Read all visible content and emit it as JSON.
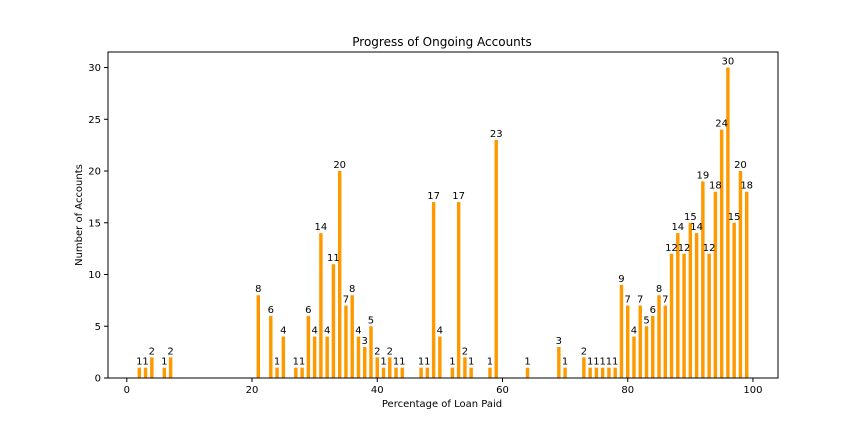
{
  "chart_data": {
    "type": "bar",
    "title": "Progress of Ongoing Accounts",
    "xlabel": "Percentage of Loan Paid",
    "ylabel": "Number of Accounts",
    "xlim": [
      -3,
      104
    ],
    "ylim": [
      0,
      31.5
    ],
    "xticks": [
      0,
      20,
      40,
      60,
      80,
      100
    ],
    "yticks": [
      0,
      5,
      10,
      15,
      20,
      25,
      30
    ],
    "grid": false,
    "bar_color": "#ff9900",
    "bars": [
      {
        "x": 2,
        "y": 1
      },
      {
        "x": 3,
        "y": 1
      },
      {
        "x": 4,
        "y": 2
      },
      {
        "x": 6,
        "y": 1
      },
      {
        "x": 7,
        "y": 2
      },
      {
        "x": 21,
        "y": 8
      },
      {
        "x": 23,
        "y": 6
      },
      {
        "x": 24,
        "y": 1
      },
      {
        "x": 25,
        "y": 4
      },
      {
        "x": 27,
        "y": 1
      },
      {
        "x": 28,
        "y": 1
      },
      {
        "x": 29,
        "y": 6
      },
      {
        "x": 30,
        "y": 4
      },
      {
        "x": 31,
        "y": 14
      },
      {
        "x": 32,
        "y": 4
      },
      {
        "x": 33,
        "y": 11
      },
      {
        "x": 34,
        "y": 20
      },
      {
        "x": 35,
        "y": 7
      },
      {
        "x": 36,
        "y": 8
      },
      {
        "x": 37,
        "y": 4
      },
      {
        "x": 38,
        "y": 3
      },
      {
        "x": 39,
        "y": 5
      },
      {
        "x": 40,
        "y": 2
      },
      {
        "x": 41,
        "y": 1
      },
      {
        "x": 42,
        "y": 2
      },
      {
        "x": 43,
        "y": 1
      },
      {
        "x": 44,
        "y": 1
      },
      {
        "x": 47,
        "y": 1
      },
      {
        "x": 48,
        "y": 1
      },
      {
        "x": 49,
        "y": 17
      },
      {
        "x": 50,
        "y": 4
      },
      {
        "x": 52,
        "y": 1
      },
      {
        "x": 53,
        "y": 17
      },
      {
        "x": 54,
        "y": 2
      },
      {
        "x": 55,
        "y": 1
      },
      {
        "x": 58,
        "y": 1
      },
      {
        "x": 59,
        "y": 23
      },
      {
        "x": 64,
        "y": 1
      },
      {
        "x": 69,
        "y": 3
      },
      {
        "x": 70,
        "y": 1
      },
      {
        "x": 73,
        "y": 2
      },
      {
        "x": 74,
        "y": 1
      },
      {
        "x": 75,
        "y": 1
      },
      {
        "x": 76,
        "y": 1
      },
      {
        "x": 77,
        "y": 1
      },
      {
        "x": 78,
        "y": 1
      },
      {
        "x": 79,
        "y": 9
      },
      {
        "x": 80,
        "y": 7
      },
      {
        "x": 81,
        "y": 4
      },
      {
        "x": 82,
        "y": 7
      },
      {
        "x": 83,
        "y": 5
      },
      {
        "x": 84,
        "y": 6
      },
      {
        "x": 85,
        "y": 8
      },
      {
        "x": 86,
        "y": 7
      },
      {
        "x": 87,
        "y": 12
      },
      {
        "x": 88,
        "y": 14
      },
      {
        "x": 89,
        "y": 12
      },
      {
        "x": 90,
        "y": 15
      },
      {
        "x": 91,
        "y": 14
      },
      {
        "x": 92,
        "y": 19
      },
      {
        "x": 93,
        "y": 12
      },
      {
        "x": 94,
        "y": 18
      },
      {
        "x": 95,
        "y": 24
      },
      {
        "x": 96,
        "y": 30
      },
      {
        "x": 97,
        "y": 15
      },
      {
        "x": 98,
        "y": 20
      },
      {
        "x": 99,
        "y": 18
      }
    ]
  }
}
